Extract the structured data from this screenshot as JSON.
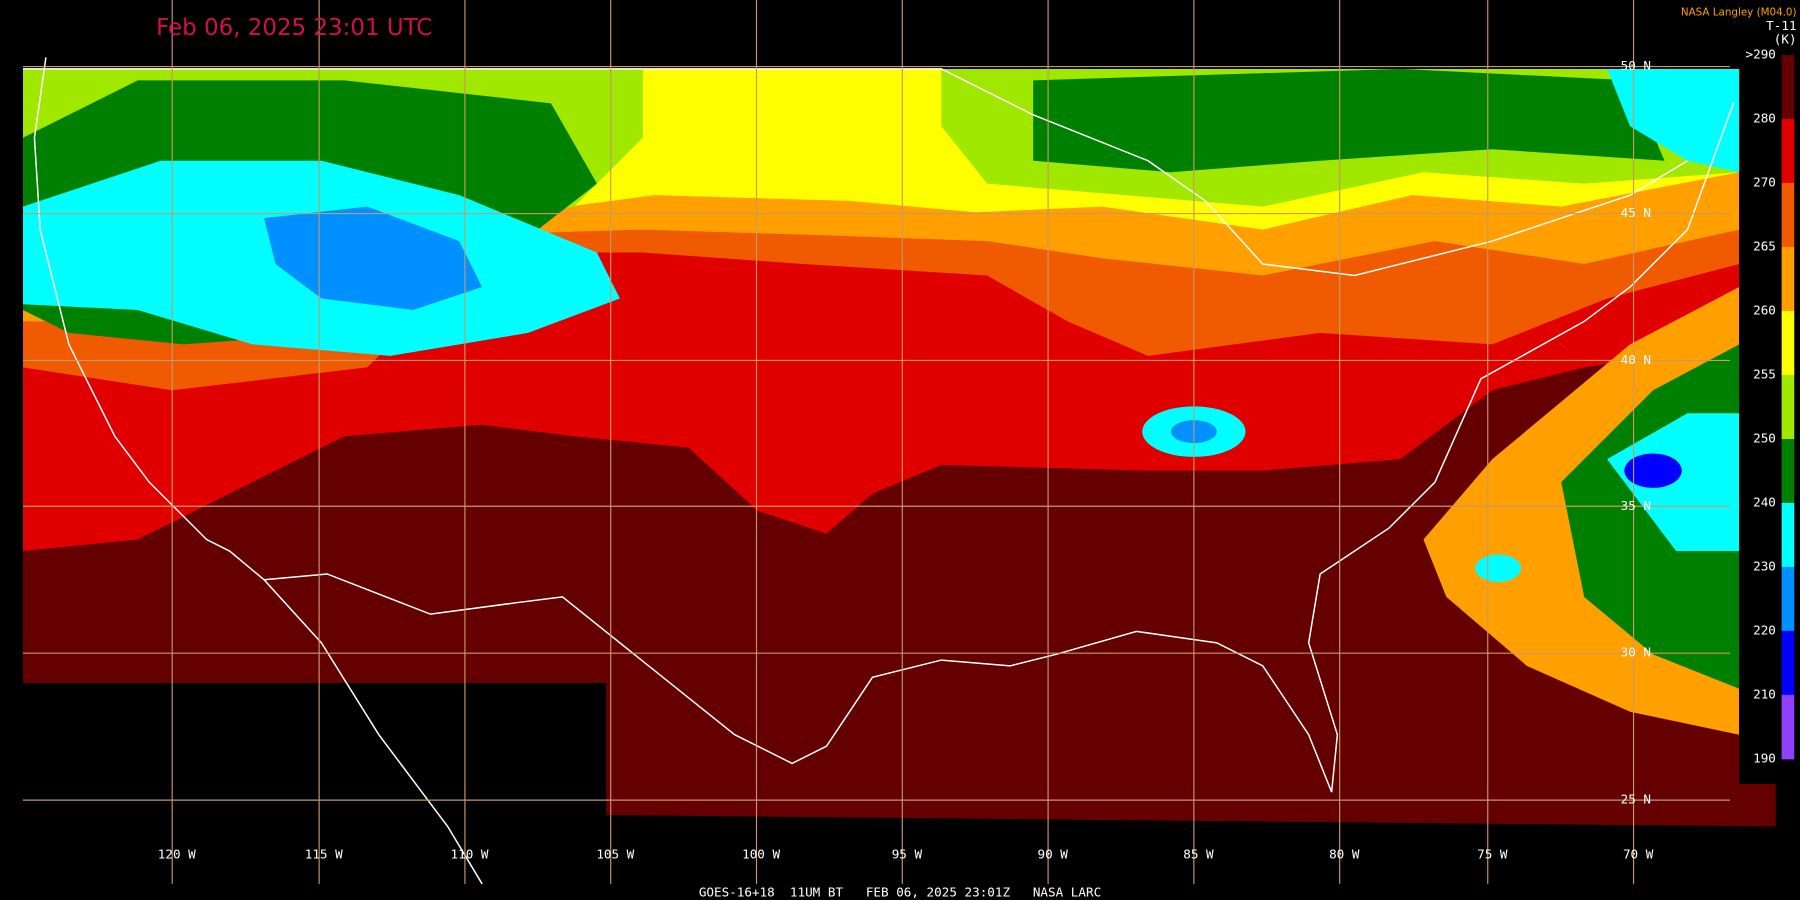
{
  "header": {
    "title": "Feb 06, 2025 23:01 UTC",
    "credit": "NASA Langley (M04.0)",
    "product": "T-11",
    "unit": "(K)"
  },
  "colorbar": {
    "labels": [
      ">290",
      "280",
      "270",
      "265",
      "260",
      "255",
      "250",
      "240",
      "230",
      "220",
      "210",
      "190"
    ],
    "colors": [
      "#640000",
      "#e00000",
      "#f05a00",
      "#ffa000",
      "#ffff00",
      "#a0e800",
      "#008000",
      "#00ffff",
      "#0090ff",
      "#0000ff",
      "#9040ff"
    ]
  },
  "latitude_labels": [
    "50 N",
    "45 N",
    "40 N",
    "35 N",
    "30 N",
    "25 N"
  ],
  "longitude_labels": [
    "120 W",
    "115 W",
    "110 W",
    "105 W",
    "100 W",
    "95 W",
    "90 W",
    "85 W",
    "80 W",
    "75 W",
    "70 W"
  ],
  "footer": "GOES-16+18  11UM BT   FEB 06, 2025 23:01Z   NASA LARC"
}
